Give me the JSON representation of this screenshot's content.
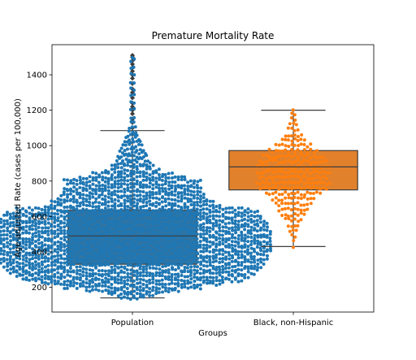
{
  "chart_data": {
    "type": "box",
    "title": "Premature Mortality Rate",
    "xlabel": "Groups",
    "ylabel": "Age-adjusted Rate (cases per 100,000)",
    "categories": [
      "Population",
      "Black, non-Hispanic"
    ],
    "ylim": [
      60,
      1570
    ],
    "yticks": [
      200,
      400,
      600,
      800,
      1000,
      1200,
      1400
    ],
    "boxes": [
      {
        "name": "Population",
        "color": "#1f77b4",
        "box_color": "#3274a1",
        "whisker_low": 140,
        "q1": 330,
        "median": 490,
        "q3": 635,
        "whisker_high": 1085,
        "outliers": [
          1100,
          1130,
          1150,
          1180,
          1200,
          1220,
          1240,
          1270,
          1300,
          1320,
          1350,
          1380,
          1400,
          1420,
          1440,
          1460,
          1480,
          1500,
          1510
        ]
      },
      {
        "name": "Black, non-Hispanic",
        "color": "#ff7f0e",
        "box_color": "#e1812c",
        "whisker_low": 430,
        "q1": 750,
        "median": 880,
        "q3": 972,
        "whisker_high": 1200,
        "outliers": []
      }
    ],
    "swarm": [
      {
        "group": "Population",
        "bins": [
          [
            140,
            8
          ],
          [
            160,
            16
          ],
          [
            180,
            30
          ],
          [
            200,
            44
          ],
          [
            220,
            58
          ],
          [
            240,
            70
          ],
          [
            260,
            74
          ],
          [
            280,
            78
          ],
          [
            300,
            80
          ],
          [
            320,
            82
          ],
          [
            340,
            84
          ],
          [
            360,
            86
          ],
          [
            380,
            86
          ],
          [
            400,
            88
          ],
          [
            420,
            88
          ],
          [
            440,
            88
          ],
          [
            460,
            88
          ],
          [
            480,
            88
          ],
          [
            500,
            88
          ],
          [
            520,
            88
          ],
          [
            540,
            86
          ],
          [
            560,
            86
          ],
          [
            580,
            84
          ],
          [
            600,
            82
          ],
          [
            620,
            80
          ],
          [
            640,
            74
          ],
          [
            660,
            56
          ],
          [
            680,
            52
          ],
          [
            700,
            48
          ],
          [
            720,
            46
          ],
          [
            740,
            44
          ],
          [
            760,
            44
          ],
          [
            780,
            42
          ],
          [
            800,
            44
          ],
          [
            820,
            34
          ],
          [
            840,
            26
          ],
          [
            860,
            18
          ],
          [
            880,
            14
          ],
          [
            900,
            12
          ],
          [
            920,
            11
          ],
          [
            940,
            10
          ],
          [
            960,
            9
          ],
          [
            980,
            8
          ],
          [
            1000,
            7
          ],
          [
            1020,
            6
          ],
          [
            1040,
            5
          ],
          [
            1060,
            4
          ],
          [
            1080,
            3
          ],
          [
            1100,
            3
          ],
          [
            1130,
            2
          ],
          [
            1160,
            2
          ],
          [
            1200,
            2
          ],
          [
            1240,
            2
          ],
          [
            1280,
            2
          ],
          [
            1320,
            2
          ],
          [
            1360,
            2
          ],
          [
            1400,
            2
          ],
          [
            1440,
            2
          ],
          [
            1480,
            2
          ],
          [
            1505,
            1
          ]
        ]
      },
      {
        "group": "Black, non-Hispanic",
        "bins": [
          [
            430,
            1
          ],
          [
            460,
            1
          ],
          [
            490,
            2
          ],
          [
            520,
            3
          ],
          [
            550,
            4
          ],
          [
            580,
            6
          ],
          [
            610,
            8
          ],
          [
            640,
            10
          ],
          [
            670,
            12
          ],
          [
            700,
            14
          ],
          [
            730,
            18
          ],
          [
            760,
            22
          ],
          [
            790,
            24
          ],
          [
            820,
            22
          ],
          [
            850,
            24
          ],
          [
            880,
            24
          ],
          [
            910,
            22
          ],
          [
            940,
            20
          ],
          [
            970,
            16
          ],
          [
            1000,
            12
          ],
          [
            1030,
            8
          ],
          [
            1060,
            6
          ],
          [
            1090,
            4
          ],
          [
            1120,
            3
          ],
          [
            1150,
            2
          ],
          [
            1180,
            2
          ],
          [
            1195,
            1
          ]
        ]
      }
    ]
  }
}
